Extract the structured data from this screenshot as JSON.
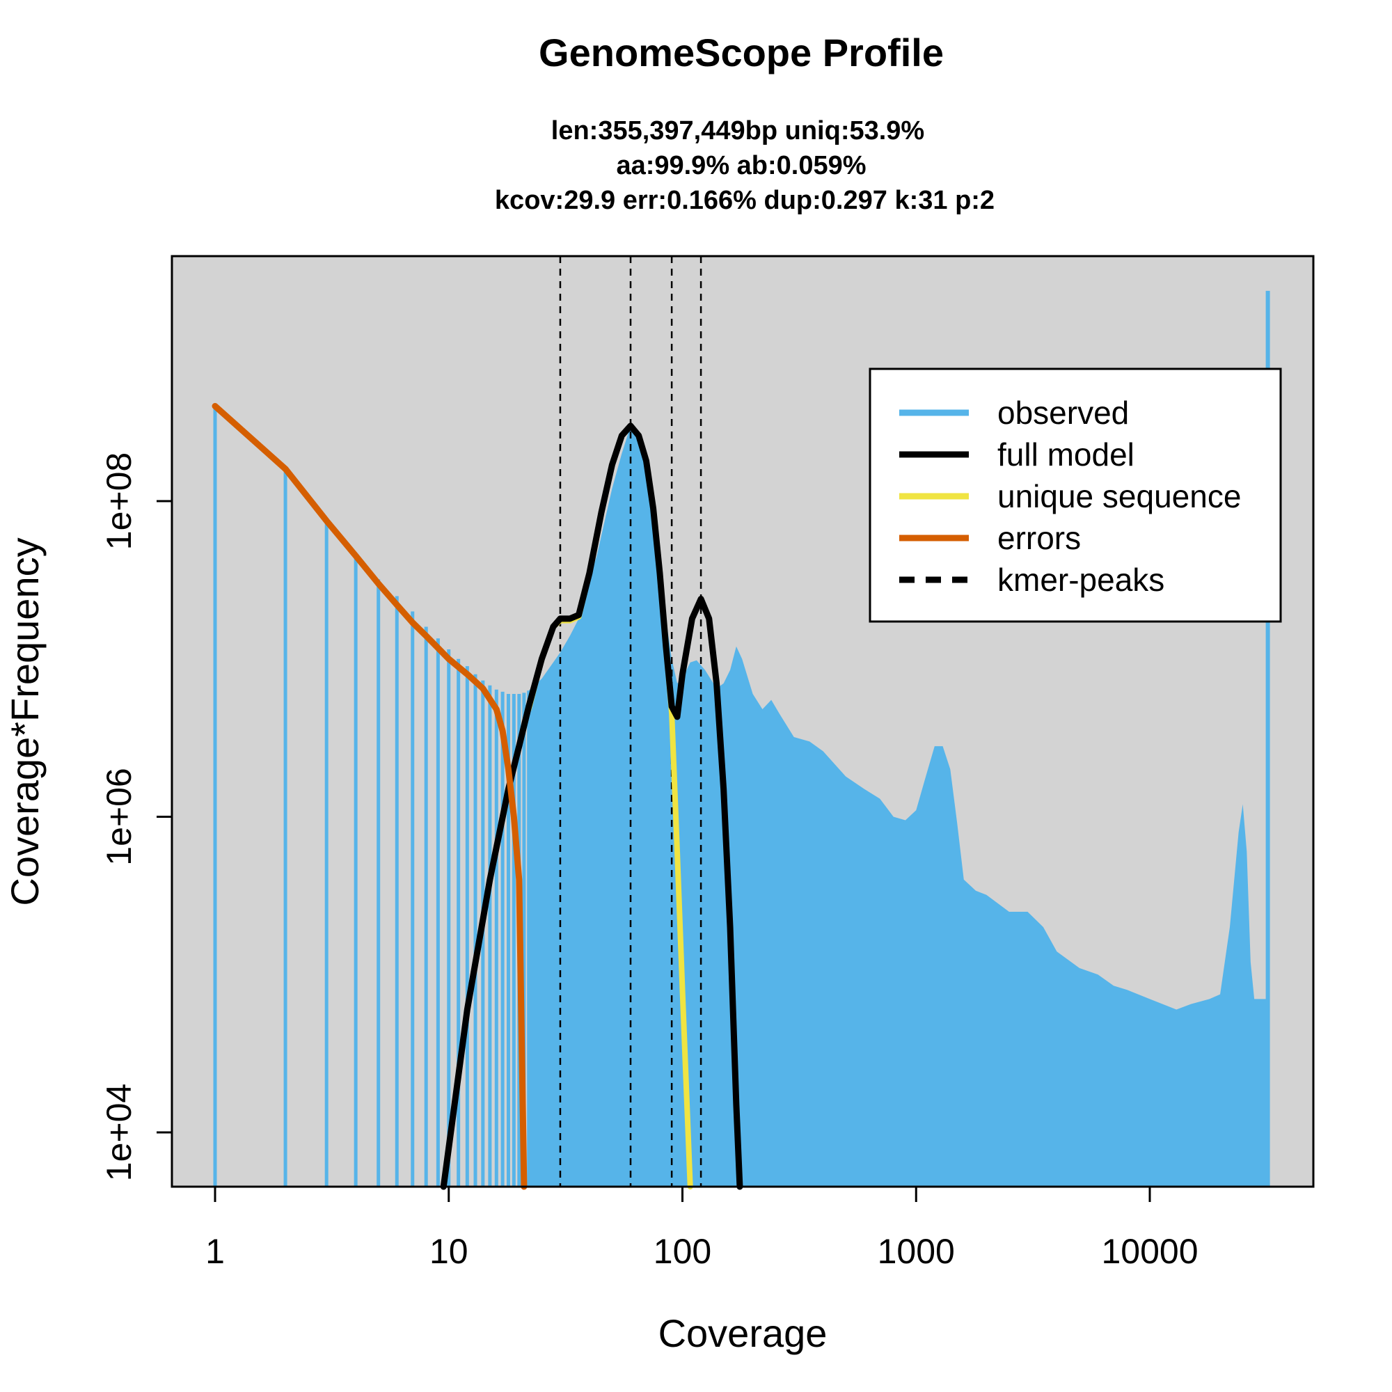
{
  "chart_data": {
    "type": "area",
    "title": "GenomeScope Profile",
    "subtitle_lines": [
      "len:355,397,449bp uniq:53.9%",
      "aa:99.9% ab:0.059%",
      "kcov:29.9 err:0.166%  dup:0.297  k:31 p:2"
    ],
    "xlabel": "Coverage",
    "ylabel": "Coverage*Frequency",
    "x_scale": "log",
    "y_scale": "log",
    "xlim": [
      1,
      32000
    ],
    "ylim": [
      4500,
      2700000000
    ],
    "x_ticks": [
      1,
      10,
      100,
      1000,
      10000
    ],
    "x_tick_labels": [
      "1",
      "10",
      "100",
      "1000",
      "10000"
    ],
    "y_ticks": [
      10000,
      1000000,
      100000000
    ],
    "y_tick_labels": [
      "1e+04",
      "1e+06",
      "1e+08"
    ],
    "plot_background": "#d3d3d3",
    "legend_position": "top-right",
    "legend": [
      {
        "label": "observed",
        "color": "#56b4e9",
        "style": "solid"
      },
      {
        "label": "full model",
        "color": "#000000",
        "style": "solid"
      },
      {
        "label": "unique sequence",
        "color": "#f0e442",
        "style": "solid"
      },
      {
        "label": "errors",
        "color": "#d55e00",
        "style": "solid"
      },
      {
        "label": "kmer-peaks",
        "color": "#000000",
        "style": "dashed"
      }
    ],
    "kmer_peaks": [
      30,
      60,
      90,
      120
    ],
    "observed_isolated": [
      {
        "x": 1,
        "y": 400000000
      },
      {
        "x": 2,
        "y": 160000000
      },
      {
        "x": 3,
        "y": 75000000
      },
      {
        "x": 4,
        "y": 45000000
      },
      {
        "x": 5,
        "y": 32000000
      },
      {
        "x": 6,
        "y": 25000000
      },
      {
        "x": 7,
        "y": 20000000
      },
      {
        "x": 8,
        "y": 16000000
      },
      {
        "x": 9,
        "y": 13500000
      },
      {
        "x": 10,
        "y": 11500000
      },
      {
        "x": 11,
        "y": 10000000
      },
      {
        "x": 12,
        "y": 9000000
      },
      {
        "x": 13,
        "y": 8000000
      },
      {
        "x": 14,
        "y": 7300000
      },
      {
        "x": 15,
        "y": 6800000
      },
      {
        "x": 16,
        "y": 6400000
      },
      {
        "x": 17,
        "y": 6200000
      },
      {
        "x": 18,
        "y": 6000000
      },
      {
        "x": 19,
        "y": 6000000
      },
      {
        "x": 20,
        "y": 6000000
      },
      {
        "x": 21,
        "y": 6100000
      },
      {
        "x": 22,
        "y": 6300000
      }
    ],
    "observed_profile": [
      [
        22,
        6300000
      ],
      [
        25,
        7500000
      ],
      [
        28,
        9500000
      ],
      [
        30,
        11000000
      ],
      [
        33,
        14000000
      ],
      [
        36,
        18000000
      ],
      [
        38,
        22000000
      ],
      [
        40,
        32000000
      ],
      [
        43,
        45000000
      ],
      [
        46,
        70000000
      ],
      [
        50,
        120000000
      ],
      [
        55,
        200000000
      ],
      [
        60,
        300000000
      ],
      [
        65,
        270000000
      ],
      [
        70,
        200000000
      ],
      [
        75,
        100000000
      ],
      [
        80,
        40000000
      ],
      [
        85,
        18000000
      ],
      [
        90,
        10000000
      ],
      [
        95,
        7000000
      ],
      [
        100,
        7500000
      ],
      [
        108,
        9500000
      ],
      [
        115,
        9800000
      ],
      [
        125,
        8500000
      ],
      [
        140,
        6500000
      ],
      [
        150,
        7000000
      ],
      [
        160,
        8500000
      ],
      [
        170,
        12000000
      ],
      [
        180,
        10000000
      ],
      [
        200,
        6000000
      ],
      [
        220,
        4800000
      ],
      [
        240,
        5500000
      ],
      [
        260,
        4500000
      ],
      [
        300,
        3200000
      ],
      [
        350,
        3000000
      ],
      [
        400,
        2600000
      ],
      [
        500,
        1800000
      ],
      [
        600,
        1500000
      ],
      [
        700,
        1300000
      ],
      [
        800,
        1000000
      ],
      [
        900,
        950000
      ],
      [
        1000,
        1100000
      ],
      [
        1100,
        1800000
      ],
      [
        1200,
        2800000
      ],
      [
        1300,
        2800000
      ],
      [
        1400,
        2000000
      ],
      [
        1500,
        900000
      ],
      [
        1600,
        400000
      ],
      [
        1800,
        340000
      ],
      [
        2000,
        320000
      ],
      [
        2500,
        250000
      ],
      [
        3000,
        250000
      ],
      [
        3500,
        200000
      ],
      [
        4000,
        140000
      ],
      [
        5000,
        110000
      ],
      [
        6000,
        100000
      ],
      [
        7000,
        85000
      ],
      [
        8000,
        80000
      ],
      [
        10000,
        70000
      ],
      [
        13000,
        60000
      ],
      [
        15000,
        65000
      ],
      [
        18000,
        70000
      ],
      [
        20000,
        75000
      ],
      [
        22000,
        200000
      ],
      [
        24000,
        800000
      ],
      [
        25000,
        1200000
      ],
      [
        26000,
        600000
      ],
      [
        27000,
        120000
      ],
      [
        28000,
        70000
      ],
      [
        30000,
        70000
      ],
      [
        32000,
        70000
      ]
    ],
    "observed_spike": {
      "x": 32000,
      "y": 2150000000
    },
    "full_model": [
      [
        9.5,
        4500
      ],
      [
        12,
        60000
      ],
      [
        15,
        400000
      ],
      [
        18,
        1500000
      ],
      [
        20,
        2800000
      ],
      [
        22,
        5000000
      ],
      [
        25,
        10000000
      ],
      [
        28,
        16000000
      ],
      [
        30,
        18000000
      ],
      [
        33,
        18000000
      ],
      [
        36,
        19000000
      ],
      [
        40,
        35000000
      ],
      [
        45,
        85000000
      ],
      [
        50,
        170000000
      ],
      [
        55,
        260000000
      ],
      [
        60,
        300000000
      ],
      [
        65,
        260000000
      ],
      [
        70,
        180000000
      ],
      [
        75,
        90000000
      ],
      [
        80,
        35000000
      ],
      [
        85,
        12000000
      ],
      [
        90,
        5000000
      ],
      [
        95,
        4300000
      ],
      [
        100,
        8000000
      ],
      [
        110,
        18000000
      ],
      [
        120,
        24000000
      ],
      [
        130,
        18000000
      ],
      [
        140,
        7000000
      ],
      [
        150,
        1500000
      ],
      [
        160,
        200000
      ],
      [
        170,
        15000
      ],
      [
        176,
        4500
      ]
    ],
    "unique_sequence": [
      [
        22,
        4800000
      ],
      [
        25,
        10000000
      ],
      [
        28,
        16000000
      ],
      [
        30,
        17500000
      ],
      [
        33,
        17500000
      ],
      [
        36,
        18500000
      ],
      [
        40,
        35000000
      ],
      [
        45,
        85000000
      ],
      [
        50,
        170000000
      ],
      [
        55,
        260000000
      ],
      [
        60,
        300000000
      ],
      [
        65,
        260000000
      ],
      [
        70,
        180000000
      ],
      [
        75,
        90000000
      ],
      [
        80,
        35000000
      ],
      [
        85,
        12000000
      ],
      [
        90,
        4500000
      ],
      [
        95,
        600000
      ],
      [
        100,
        80000
      ],
      [
        108,
        4500
      ]
    ],
    "errors": [
      [
        1,
        400000000
      ],
      [
        2,
        160000000
      ],
      [
        3,
        75000000
      ],
      [
        4,
        45000000
      ],
      [
        5,
        30000000
      ],
      [
        6,
        22000000
      ],
      [
        7,
        17000000
      ],
      [
        8,
        14000000
      ],
      [
        10,
        10000000
      ],
      [
        12,
        8000000
      ],
      [
        14,
        6500000
      ],
      [
        16,
        4800000
      ],
      [
        17,
        3500000
      ],
      [
        18,
        2000000
      ],
      [
        19,
        1000000
      ],
      [
        20,
        400000
      ],
      [
        21,
        4500
      ]
    ]
  }
}
